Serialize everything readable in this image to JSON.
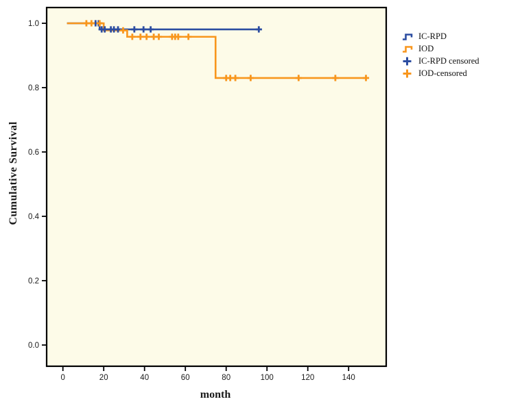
{
  "figure": {
    "background": "#ffffff",
    "plot_background": "#fdfbe8",
    "frame_color": "#000000"
  },
  "chart_data": {
    "type": "line",
    "subtype": "kaplan-meier-survival-steps",
    "title": "",
    "xlabel": "month",
    "ylabel": "Cumulative Survival",
    "xlim": [
      -8,
      158.4
    ],
    "ylim": [
      -0.066,
      1.049
    ],
    "grid": "off",
    "legend_position": "right-outside",
    "x_ticks": [
      0,
      20,
      40,
      60,
      80,
      100,
      120,
      140
    ],
    "x_tick_labels": [
      "0",
      "20",
      "40",
      "60",
      "80",
      "100",
      "120",
      "140"
    ],
    "y_ticks": [
      0.0,
      0.2,
      0.4,
      0.6,
      0.8,
      1.0
    ],
    "y_tick_labels": [
      "0.0",
      "0.2",
      "0.4",
      "0.6",
      "0.8",
      "1.0"
    ],
    "series": [
      {
        "name": "IC-RPD",
        "color": "#2c4da1",
        "steps": [
          [
            2,
            1.0
          ],
          [
            18,
            1.0
          ],
          [
            18,
            0.981
          ],
          [
            96,
            0.981
          ]
        ],
        "censored": [
          [
            16,
            1.0
          ],
          [
            17.5,
            1.0
          ],
          [
            19,
            0.981
          ],
          [
            20.5,
            0.981
          ],
          [
            23.5,
            0.981
          ],
          [
            25,
            0.981
          ],
          [
            27,
            0.981
          ],
          [
            35,
            0.981
          ],
          [
            39.5,
            0.981
          ],
          [
            43,
            0.981
          ],
          [
            96,
            0.981
          ]
        ]
      },
      {
        "name": "IOD",
        "color": "#f8961d",
        "steps": [
          [
            2,
            1.0
          ],
          [
            20,
            1.0
          ],
          [
            20,
            0.978
          ],
          [
            31.5,
            0.978
          ],
          [
            31.5,
            0.958
          ],
          [
            74.8,
            0.958
          ],
          [
            74.8,
            0.83
          ],
          [
            149,
            0.83
          ]
        ],
        "censored": [
          [
            11.5,
            1.0
          ],
          [
            14,
            1.0
          ],
          [
            18,
            1.0
          ],
          [
            29.5,
            0.978
          ],
          [
            34,
            0.958
          ],
          [
            38,
            0.958
          ],
          [
            41,
            0.958
          ],
          [
            44.5,
            0.958
          ],
          [
            47,
            0.958
          ],
          [
            53.5,
            0.958
          ],
          [
            55,
            0.958
          ],
          [
            56.5,
            0.958
          ],
          [
            61.5,
            0.958
          ],
          [
            80,
            0.83
          ],
          [
            82,
            0.83
          ],
          [
            84.5,
            0.83
          ],
          [
            92,
            0.83
          ],
          [
            115.5,
            0.83
          ],
          [
            133.5,
            0.83
          ],
          [
            148.5,
            0.83
          ]
        ]
      }
    ],
    "legend": [
      {
        "label": "IC-RPD",
        "marker": "step",
        "color": "#2c4da1"
      },
      {
        "label": "IOD",
        "marker": "step",
        "color": "#f8961d"
      },
      {
        "label": "IC-RPD censored",
        "marker": "plus",
        "color": "#2c4da1"
      },
      {
        "label": "IOD-censored",
        "marker": "plus",
        "color": "#f8961d"
      }
    ]
  }
}
